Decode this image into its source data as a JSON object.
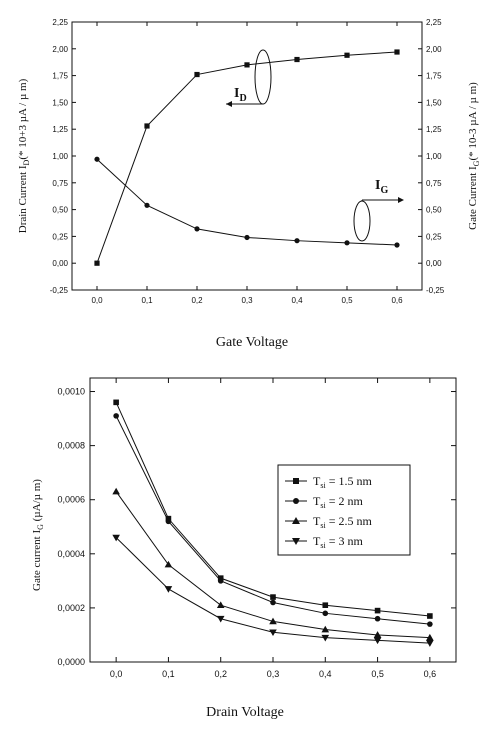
{
  "chart_data": [
    {
      "type": "line",
      "caption": "Gate Voltage",
      "ylabel_left": "Drain Current I_D(* 10+3 µA / µ m)",
      "ylabel_right": "Gate Current I_G(* 10-3 µA / µ m)",
      "xlim": [
        -0.05,
        0.65
      ],
      "ylim": [
        -0.25,
        2.25
      ],
      "x_ticks": [
        "0,0",
        "0,1",
        "0,2",
        "0,3",
        "0,4",
        "0,5",
        "0,6"
      ],
      "y_ticks": [
        "-0,25",
        "0,00",
        "0,25",
        "0,50",
        "0,75",
        "1,00",
        "1,25",
        "1,50",
        "1,75",
        "2,00",
        "2,25"
      ],
      "x": [
        0.0,
        0.1,
        0.2,
        0.3,
        0.4,
        0.5,
        0.6
      ],
      "series": [
        {
          "name": "I_D",
          "marker": "square",
          "values": [
            0.0,
            1.28,
            1.76,
            1.85,
            1.9,
            1.94,
            1.97
          ]
        },
        {
          "name": "I_G",
          "marker": "circle",
          "values": [
            0.97,
            0.54,
            0.32,
            0.24,
            0.21,
            0.19,
            0.17
          ]
        }
      ],
      "annotations": {
        "id_main": "I",
        "id_sub": "D",
        "ig_main": "I",
        "ig_sub": "G"
      }
    },
    {
      "type": "line",
      "caption": "Drain Voltage",
      "ylabel": "Gate current I_G (µA/µ m)",
      "xlim": [
        -0.05,
        0.65
      ],
      "ylim": [
        0.0,
        0.00105
      ],
      "x_ticks": [
        "0,0",
        "0,1",
        "0,2",
        "0,3",
        "0,4",
        "0,5",
        "0,6"
      ],
      "y_ticks": [
        "0,0000",
        "0,0002",
        "0,0004",
        "0,0006",
        "0,0008",
        "0,0010"
      ],
      "x": [
        0.0,
        0.1,
        0.2,
        0.3,
        0.4,
        0.5,
        0.6
      ],
      "series": [
        {
          "name": "T_si = 1.5 nm",
          "marker": "square",
          "values": [
            0.00096,
            0.00053,
            0.00031,
            0.00024,
            0.00021,
            0.00019,
            0.00017
          ]
        },
        {
          "name": "T_si = 2 nm",
          "marker": "circle",
          "values": [
            0.00091,
            0.00052,
            0.0003,
            0.00022,
            0.00018,
            0.00016,
            0.00014
          ]
        },
        {
          "name": "T_si = 2.5 nm",
          "marker": "triangle-up",
          "values": [
            0.00063,
            0.00036,
            0.00021,
            0.00015,
            0.00012,
            0.0001,
            9e-05
          ]
        },
        {
          "name": "T_si = 3 nm",
          "marker": "triangle-down",
          "values": [
            0.00046,
            0.00027,
            0.00016,
            0.00011,
            9e-05,
            8e-05,
            7e-05
          ]
        }
      ],
      "legend": [
        {
          "pre": "T",
          "sub": "si",
          "post": " = 1.5 nm"
        },
        {
          "pre": "T",
          "sub": "si",
          "post": " = 2 nm"
        },
        {
          "pre": "T",
          "sub": "si",
          "post": " = 2.5 nm"
        },
        {
          "pre": "T",
          "sub": "si",
          "post": " = 3 nm"
        }
      ],
      "legend_position": "upper-right"
    }
  ]
}
